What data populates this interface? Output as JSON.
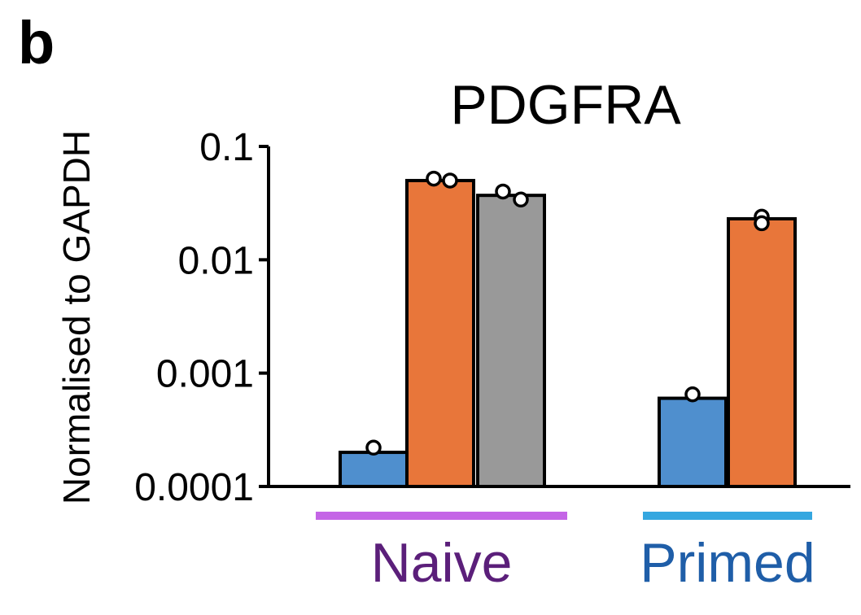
{
  "panel_label": "b",
  "colors": {
    "blue": "#4f8fce",
    "orange": "#e8763a",
    "gray": "#999999",
    "naive_bar": "#c465e6",
    "naive_text": "#5b1f7a",
    "primed_bar": "#35a7e0",
    "primed_text": "#1f5ea8"
  },
  "groups": [
    {
      "label": "Naive",
      "bar_color": "#c465e6",
      "text_color": "#5b1f7a"
    },
    {
      "label": "Primed",
      "bar_color": "#35a7e0",
      "text_color": "#1f5ea8"
    }
  ],
  "chart_data": {
    "type": "bar",
    "title": "PDGFRA",
    "ylabel": "Normalised to GAPDH",
    "yscale": "log",
    "ylim": [
      0.0001,
      0.1
    ],
    "yticks": [
      "0.1",
      "0.01",
      "0.001",
      "0.0001"
    ],
    "ytick_values": [
      0.1,
      0.01,
      0.001,
      0.0001
    ],
    "bars": [
      {
        "group": "Naive",
        "value": 0.0002,
        "color": "#4f8fce",
        "points": [
          0.00022
        ]
      },
      {
        "group": "Naive",
        "value": 0.05,
        "color": "#e8763a",
        "points": [
          0.052,
          0.05
        ]
      },
      {
        "group": "Naive",
        "value": 0.037,
        "color": "#999999",
        "points": [
          0.04,
          0.034
        ]
      },
      {
        "group": "Primed",
        "value": 0.0006,
        "color": "#4f8fce",
        "points": [
          0.00065
        ]
      },
      {
        "group": "Primed",
        "value": 0.023,
        "color": "#e8763a",
        "points": [
          0.024,
          0.021
        ]
      }
    ]
  }
}
